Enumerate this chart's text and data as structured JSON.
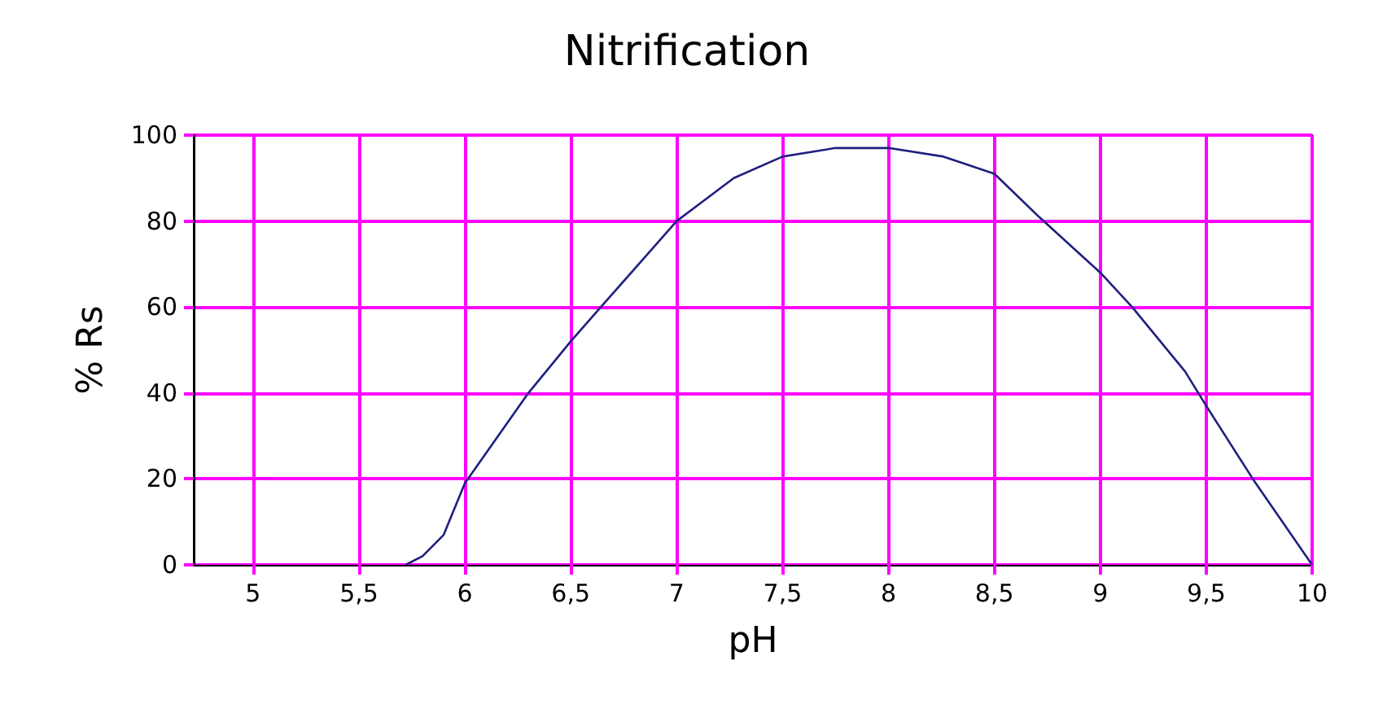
{
  "chart_data": {
    "type": "line",
    "title": "Nitrification",
    "xlabel": "pH",
    "ylabel": "% Rs",
    "x": [
      5.72,
      5.8,
      5.9,
      6.0,
      6.1,
      6.3,
      6.5,
      6.66,
      7.0,
      7.27,
      7.5,
      7.75,
      8.0,
      8.26,
      8.5,
      8.71,
      9.0,
      9.15,
      9.4,
      9.5,
      9.72,
      10.0
    ],
    "series": [
      {
        "color": "#1f1f80",
        "values": [
          0,
          2,
          7,
          19,
          26,
          40,
          52,
          61,
          80,
          90,
          95,
          97,
          97,
          95,
          91,
          81,
          68,
          60,
          45,
          37,
          20,
          0
        ]
      }
    ],
    "xlim": [
      4.72,
      10
    ],
    "ylim": [
      0,
      100
    ],
    "xticks": [
      5,
      {
        "value": 5.5,
        "label": "5,5"
      },
      6,
      {
        "value": 6.5,
        "label": "6,5"
      },
      7,
      {
        "value": 7.5,
        "label": "7,5"
      },
      8,
      {
        "value": 8.5,
        "label": "8,5"
      },
      9,
      {
        "value": 9.5,
        "label": "9,5"
      },
      10
    ],
    "yticks": [
      0,
      20,
      40,
      60,
      80,
      100
    ],
    "grid": true,
    "marker": "none",
    "line_style": "solid"
  }
}
